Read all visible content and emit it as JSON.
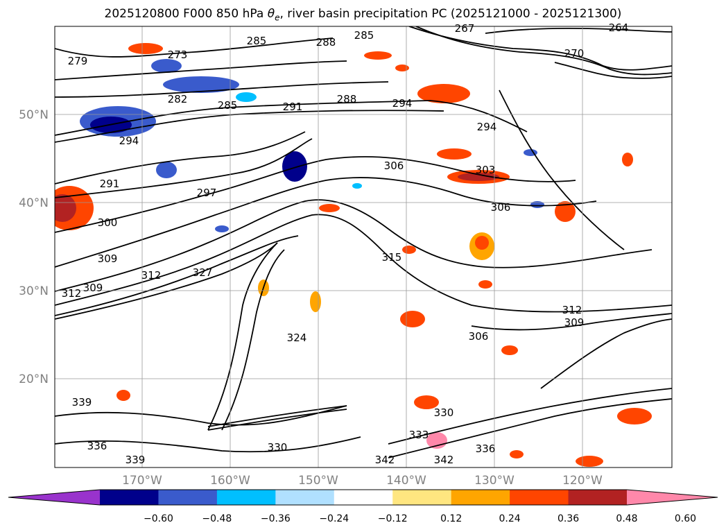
{
  "title": {
    "prefix": "2025120800 F000 850 hPa ",
    "symbol": "θ",
    "subscript": "e",
    "suffix": ", river basin precipitation PC (2025121000 - 2025121300)"
  },
  "chart_data": {
    "type": "heatmap",
    "description_of_axes": "map projection",
    "x_ticks": [
      "170°W",
      "160°W",
      "150°W",
      "140°W",
      "130°W",
      "120°W"
    ],
    "y_ticks": [
      "50°N",
      "40°N",
      "30°N",
      "20°N"
    ],
    "grid": true,
    "colorbar": {
      "orientation": "horizontal",
      "extend": "both",
      "tick_labels": [
        "−0.60",
        "−0.48",
        "−0.36",
        "−0.24",
        "−0.12",
        "0.12",
        "0.24",
        "0.36",
        "0.48",
        "0.60"
      ],
      "colors": [
        "#9933cc",
        "#00008b",
        "#3a5bcc",
        "#00bfff",
        "#b0e0ff",
        "#ffffff",
        "#ffe680",
        "#ffa500",
        "#ff4500",
        "#b22222",
        "#ff88aa"
      ]
    },
    "contour_labels": [
      {
        "text": "279"
      },
      {
        "text": "273"
      },
      {
        "text": "285"
      },
      {
        "text": "285"
      },
      {
        "text": "288"
      },
      {
        "text": "264"
      },
      {
        "text": "267"
      },
      {
        "text": "270"
      },
      {
        "text": "282"
      },
      {
        "text": "285"
      },
      {
        "text": "291"
      },
      {
        "text": "288"
      },
      {
        "text": "294"
      },
      {
        "text": "294"
      },
      {
        "text": "294"
      },
      {
        "text": "291"
      },
      {
        "text": "297"
      },
      {
        "text": "306"
      },
      {
        "text": "303"
      },
      {
        "text": "306"
      },
      {
        "text": "300"
      },
      {
        "text": "315"
      },
      {
        "text": "312"
      },
      {
        "text": "309"
      },
      {
        "text": "312"
      },
      {
        "text": "327"
      },
      {
        "text": "312"
      },
      {
        "text": "309"
      },
      {
        "text": "306"
      },
      {
        "text": "309"
      },
      {
        "text": "324"
      },
      {
        "text": "330"
      },
      {
        "text": "330"
      },
      {
        "text": "333"
      },
      {
        "text": "336"
      },
      {
        "text": "339"
      },
      {
        "text": "342"
      },
      {
        "text": "342"
      },
      {
        "text": "339"
      },
      {
        "text": "336"
      }
    ]
  }
}
